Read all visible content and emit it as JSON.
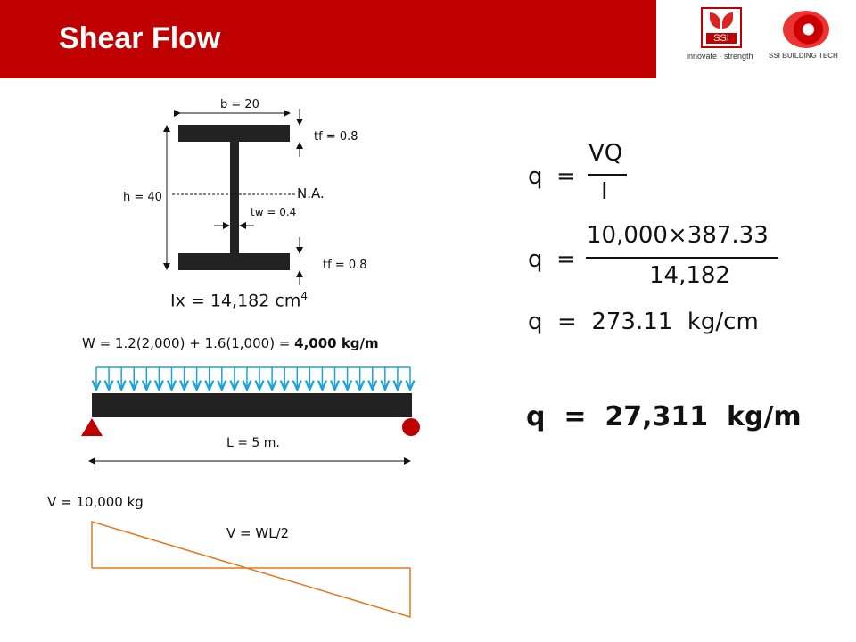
{
  "title": "Shear Flow",
  "logos": {
    "ssi": "SSI",
    "ssi_tagline": "innovate · strength",
    "ssi_bt": "SSI BUILDING TECH",
    "brand_color": "#c00000"
  },
  "section": {
    "b": "b = 20",
    "tf_top": "tf = 0.8",
    "tf_bottom": "tf = 0.8",
    "h": "h = 40",
    "na": "N.A.",
    "tw": "tw = 0.4",
    "ix": "Ix = 14,182 cm",
    "ix_exp": "4"
  },
  "load": {
    "w_formula": "W = 1.2(2,000) + 1.6(1,000) = ",
    "w_result": "4,000 kg/m",
    "length": "L = 5 m.",
    "arrow_color": "#1aa3d9"
  },
  "shear": {
    "v_max": "V = 10,000 kg",
    "v_formula": "V = WL/2",
    "line_color": "#e07820"
  },
  "equations": {
    "q": "q",
    "eq": "=",
    "num1": "VQ",
    "den1": "I",
    "num2": "10,000×387.33",
    "den2": "14,182",
    "line3": "q  =  273.11  kg/cm",
    "final": "q  =  27,311  kg/m"
  }
}
